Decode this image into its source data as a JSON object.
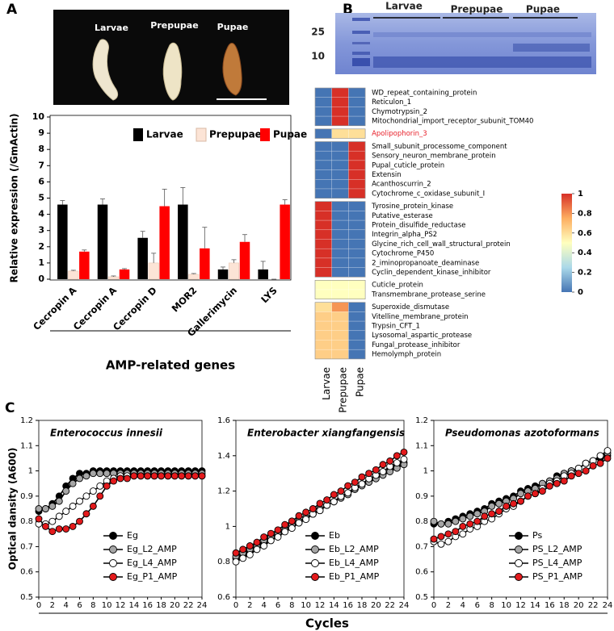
{
  "panel_labels": [
    "A",
    "B",
    "C"
  ],
  "photo_labels": [
    "Larvae",
    "Prepupae",
    "Pupae"
  ],
  "gel": {
    "markers": [
      25,
      10
    ],
    "lane_groups": [
      "Larvae",
      "Prepupae",
      "Pupae"
    ]
  },
  "chart_data": [
    {
      "type": "bar",
      "ylabel": "Relative expression (/GmActin)",
      "xlabel": "AMP-related genes",
      "categories": [
        "Cecropin A",
        "Cecropin A",
        "Cecropin D",
        "MOR2",
        "Gallerimycin",
        "LYS"
      ],
      "series": [
        {
          "name": "Larvae",
          "color": "#000000",
          "values": [
            4.6,
            4.6,
            2.55,
            4.6,
            0.6,
            0.6
          ],
          "errors": [
            0.25,
            0.35,
            0.4,
            1.05,
            0.15,
            0.5
          ]
        },
        {
          "name": "Prepupae",
          "color": "#fce4d6",
          "values": [
            0.5,
            0.15,
            1.0,
            0.3,
            1.0,
            0
          ],
          "errors": [
            0.05,
            0.05,
            0.6,
            0.05,
            0.2,
            0
          ]
        },
        {
          "name": "Pupae",
          "color": "#ff0000",
          "values": [
            1.7,
            0.6,
            4.5,
            1.9,
            2.3,
            4.6
          ],
          "errors": [
            0.1,
            0.05,
            1.05,
            1.3,
            0.45,
            0.3
          ]
        }
      ],
      "ylim": [
        0,
        10
      ],
      "yticks": [
        0,
        1,
        2,
        3,
        4,
        5,
        6,
        7,
        8,
        9,
        10
      ],
      "legend": "top"
    },
    {
      "type": "heatmap",
      "columns": [
        "Larvae",
        "Prepupae",
        "Pupae"
      ],
      "groups": [
        {
          "rows": [
            {
              "label": "WD_repeat_containing_protein",
              "values": [
                0,
                1,
                0
              ]
            },
            {
              "label": "Reticulon_1",
              "values": [
                0,
                1,
                0
              ]
            },
            {
              "label": "Chymotrypsin_2",
              "values": [
                0,
                1,
                0
              ]
            },
            {
              "label": "Mitochondrial_import_receptor_subunit_TOM40",
              "values": [
                0,
                1,
                0
              ]
            }
          ]
        },
        {
          "rows": [
            {
              "label": "Apolipophorin_3",
              "values": [
                0,
                0.6,
                0.6
              ],
              "label_color": "#e8202a"
            }
          ]
        },
        {
          "rows": [
            {
              "label": "Small_subunit_processome_component",
              "values": [
                0,
                0,
                1
              ]
            },
            {
              "label": "Sensory_neuron_membrane_protein",
              "values": [
                0,
                0,
                1
              ]
            },
            {
              "label": "Pupal_cuticle_protein",
              "values": [
                0,
                0,
                1
              ]
            },
            {
              "label": "Extensin",
              "values": [
                0,
                0,
                1
              ]
            },
            {
              "label": "Acanthoscurrin_2",
              "values": [
                0,
                0,
                1
              ]
            },
            {
              "label": "Cytochrome_c_oxidase_subunit_I",
              "values": [
                0,
                0,
                1
              ]
            }
          ]
        },
        {
          "rows": [
            {
              "label": "Tyrosine_protein_kinase",
              "values": [
                1,
                0,
                0
              ]
            },
            {
              "label": "Putative_esterase",
              "values": [
                1,
                0,
                0
              ]
            },
            {
              "label": "Protein_disulfide_reductase",
              "values": [
                1,
                0,
                0
              ]
            },
            {
              "label": "Integrin_alpha_PS2",
              "values": [
                1,
                0,
                0
              ]
            },
            {
              "label": "Glycine_rich_cell_wall_structural_protein",
              "values": [
                1,
                0,
                0
              ]
            },
            {
              "label": "Cytochrome_P450",
              "values": [
                1,
                0,
                0
              ]
            },
            {
              "label": "2_iminopropanoate_deaminase",
              "values": [
                1,
                0,
                0
              ]
            },
            {
              "label": "Cyclin_dependent_kinase_inhibitor",
              "values": [
                1,
                0,
                0
              ]
            }
          ]
        },
        {
          "rows": [
            {
              "label": "Cuticle_protein",
              "values": [
                0.5,
                0.5,
                0.5
              ]
            },
            {
              "label": "Transmembrane_protease_serine",
              "values": [
                0.5,
                0.5,
                0.5
              ]
            }
          ]
        },
        {
          "rows": [
            {
              "label": "Superoxide_dismutase",
              "values": [
                0.6,
                0.8,
                0
              ]
            },
            {
              "label": "Vitelline_membrane_protein",
              "values": [
                0.65,
                0.65,
                0
              ]
            },
            {
              "label": "Trypsin_CFT_1",
              "values": [
                0.65,
                0.65,
                0
              ]
            },
            {
              "label": "Lysosomal_aspartic_protease",
              "values": [
                0.65,
                0.65,
                0
              ]
            },
            {
              "label": "Fungal_protease_inhibitor",
              "values": [
                0.65,
                0.65,
                0
              ]
            },
            {
              "label": "Hemolymph_protein",
              "values": [
                0.65,
                0.65,
                0
              ]
            }
          ]
        }
      ],
      "clim": [
        0,
        1
      ],
      "colorbar_ticks": [
        0,
        0.2,
        0.4,
        0.6,
        0.8,
        1
      ],
      "colors": [
        "#4575b4",
        "#abd9e9",
        "#ffffbf",
        "#fdae61",
        "#d73027"
      ]
    },
    {
      "type": "line",
      "title": "Enterococcus  innesii",
      "ylabel": "Optical dansity (A600)",
      "xlabel": "Cycles",
      "x": [
        0,
        1,
        2,
        3,
        4,
        5,
        6,
        7,
        8,
        9,
        10,
        11,
        12,
        13,
        14,
        15,
        16,
        17,
        18,
        19,
        20,
        21,
        22,
        23,
        24
      ],
      "xlim": [
        0,
        24
      ],
      "xticks": [
        0,
        2,
        4,
        6,
        8,
        10,
        12,
        14,
        16,
        18,
        20,
        22,
        24
      ],
      "ylim": [
        0.5,
        1.2
      ],
      "yticks": [
        0.5,
        0.6,
        0.7,
        0.8,
        0.9,
        1,
        1.1,
        1.2
      ],
      "series": [
        {
          "name": "Eg",
          "color": "#000000",
          "values": [
            0.84,
            0.85,
            0.87,
            0.9,
            0.94,
            0.97,
            0.99,
            0.99,
            1,
            1,
            1,
            1,
            1,
            1,
            1,
            1,
            1,
            1,
            1,
            1,
            1,
            1,
            1,
            1,
            1
          ]
        },
        {
          "name": "Eg_L2_AMP",
          "color": "#a6a6a6",
          "values": [
            0.85,
            0.85,
            0.86,
            0.88,
            0.92,
            0.95,
            0.97,
            0.98,
            0.99,
            0.99,
            0.99,
            0.99,
            0.99,
            0.99,
            0.99,
            0.99,
            0.99,
            0.99,
            0.99,
            0.99,
            0.99,
            0.99,
            0.99,
            0.99,
            0.99
          ]
        },
        {
          "name": "Eg_L4_AMP",
          "color": "#ffffff",
          "values": [
            0.79,
            0.79,
            0.8,
            0.82,
            0.84,
            0.86,
            0.88,
            0.9,
            0.92,
            0.94,
            0.96,
            0.97,
            0.98,
            0.98,
            0.98,
            0.98,
            0.98,
            0.98,
            0.98,
            0.98,
            0.98,
            0.98,
            0.98,
            0.98,
            0.98
          ]
        },
        {
          "name": "Eg_P1_AMP",
          "color": "#e31a1c",
          "values": [
            0.81,
            0.78,
            0.76,
            0.77,
            0.77,
            0.78,
            0.8,
            0.83,
            0.86,
            0.9,
            0.94,
            0.96,
            0.97,
            0.97,
            0.98,
            0.98,
            0.98,
            0.98,
            0.98,
            0.98,
            0.98,
            0.98,
            0.98,
            0.98,
            0.98
          ]
        }
      ]
    },
    {
      "type": "line",
      "title": "Enterobacter xiangfangensis",
      "x": [
        0,
        1,
        2,
        3,
        4,
        5,
        6,
        7,
        8,
        9,
        10,
        11,
        12,
        13,
        14,
        15,
        16,
        17,
        18,
        19,
        20,
        21,
        22,
        23,
        24
      ],
      "xlim": [
        0,
        24
      ],
      "xticks": [
        0,
        2,
        4,
        6,
        8,
        10,
        12,
        14,
        16,
        18,
        20,
        22,
        24
      ],
      "ylim": [
        0.6,
        1.6
      ],
      "yticks": [
        0.6,
        0.8,
        1,
        1.2,
        1.4,
        1.6
      ],
      "series": [
        {
          "name": "Eb",
          "color": "#000000",
          "values": [
            0.82,
            0.84,
            0.86,
            0.89,
            0.91,
            0.93,
            0.95,
            0.98,
            1,
            1.02,
            1.05,
            1.07,
            1.09,
            1.12,
            1.14,
            1.17,
            1.19,
            1.21,
            1.24,
            1.26,
            1.28,
            1.3,
            1.32,
            1.34,
            1.36
          ]
        },
        {
          "name": "Eb_L2_AMP",
          "color": "#a6a6a6",
          "values": [
            0.83,
            0.85,
            0.87,
            0.89,
            0.92,
            0.94,
            0.96,
            0.98,
            1.01,
            1.03,
            1.05,
            1.07,
            1.1,
            1.12,
            1.14,
            1.16,
            1.18,
            1.21,
            1.23,
            1.25,
            1.27,
            1.29,
            1.31,
            1.33,
            1.35
          ]
        },
        {
          "name": "Eb_L4_AMP",
          "color": "#ffffff",
          "values": [
            0.8,
            0.82,
            0.84,
            0.87,
            0.89,
            0.92,
            0.94,
            0.97,
            0.99,
            1.02,
            1.04,
            1.07,
            1.09,
            1.12,
            1.14,
            1.17,
            1.19,
            1.22,
            1.24,
            1.27,
            1.29,
            1.31,
            1.34,
            1.36,
            1.38
          ]
        },
        {
          "name": "Eb_P1_AMP",
          "color": "#e31a1c",
          "values": [
            0.85,
            0.87,
            0.89,
            0.91,
            0.94,
            0.96,
            0.98,
            1.01,
            1.03,
            1.06,
            1.08,
            1.1,
            1.13,
            1.15,
            1.18,
            1.2,
            1.23,
            1.25,
            1.28,
            1.3,
            1.32,
            1.35,
            1.37,
            1.4,
            1.42
          ]
        }
      ]
    },
    {
      "type": "line",
      "title": "Pseudomonas azotoformans",
      "x": [
        0,
        1,
        2,
        3,
        4,
        5,
        6,
        7,
        8,
        9,
        10,
        11,
        12,
        13,
        14,
        15,
        16,
        17,
        18,
        19,
        20,
        21,
        22,
        23,
        24
      ],
      "xlim": [
        0,
        24
      ],
      "xticks": [
        0,
        2,
        4,
        6,
        8,
        10,
        12,
        14,
        16,
        18,
        20,
        22,
        24
      ],
      "ylim": [
        0.5,
        1.2
      ],
      "yticks": [
        0.5,
        0.6,
        0.7,
        0.8,
        0.9,
        1,
        1.1,
        1.2
      ],
      "series": [
        {
          "name": "Ps",
          "color": "#000000",
          "values": [
            0.79,
            0.79,
            0.8,
            0.81,
            0.82,
            0.83,
            0.84,
            0.85,
            0.87,
            0.88,
            0.89,
            0.9,
            0.92,
            0.93,
            0.94,
            0.95,
            0.96,
            0.98,
            0.99,
            1,
            1.01,
            1.03,
            1.04,
            1.05,
            1.06
          ]
        },
        {
          "name": "PS_L2_AMP",
          "color": "#a6a6a6",
          "values": [
            0.8,
            0.79,
            0.79,
            0.8,
            0.81,
            0.82,
            0.83,
            0.84,
            0.86,
            0.87,
            0.88,
            0.89,
            0.91,
            0.92,
            0.93,
            0.95,
            0.96,
            0.97,
            0.99,
            1,
            1.01,
            1.03,
            1.04,
            1.06,
            1.07
          ]
        },
        {
          "name": "PS_L4_AMP",
          "color": "#ffffff",
          "values": [
            0.72,
            0.71,
            0.72,
            0.74,
            0.75,
            0.77,
            0.78,
            0.8,
            0.81,
            0.83,
            0.85,
            0.86,
            0.88,
            0.9,
            0.91,
            0.93,
            0.95,
            0.96,
            0.98,
            0.99,
            1.01,
            1.03,
            1.04,
            1.06,
            1.08
          ]
        },
        {
          "name": "PS_P1_AMP",
          "color": "#e31a1c",
          "values": [
            0.73,
            0.74,
            0.75,
            0.76,
            0.78,
            0.79,
            0.8,
            0.82,
            0.83,
            0.84,
            0.86,
            0.87,
            0.88,
            0.9,
            0.91,
            0.92,
            0.94,
            0.95,
            0.96,
            0.98,
            0.99,
            1,
            1.02,
            1.03,
            1.05
          ]
        }
      ]
    }
  ]
}
